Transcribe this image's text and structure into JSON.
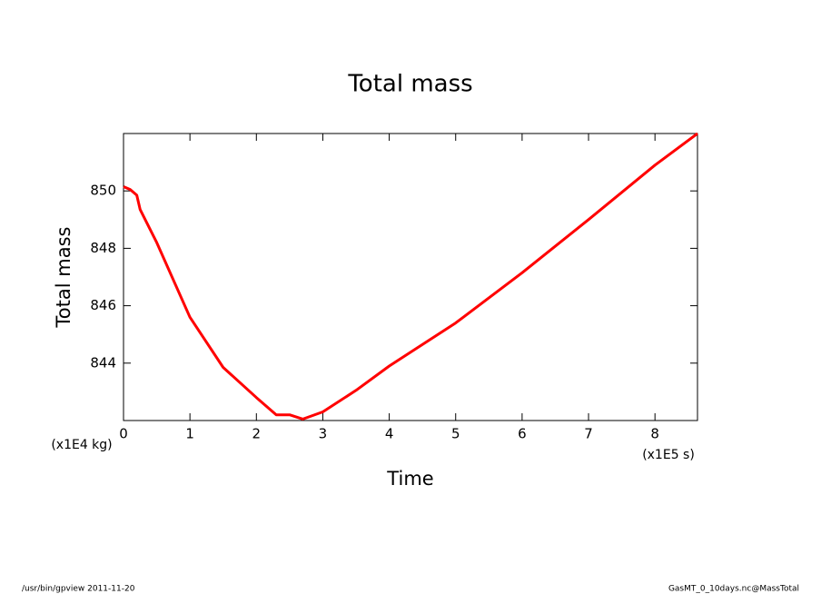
{
  "chart_data": {
    "type": "line",
    "title": "Total mass",
    "x_label": "Time",
    "y_label": "Total mass",
    "x_units": "(x1E5 s)",
    "y_units": "(x1E4 kg)",
    "footer_left": "/usr/bin/gpview  2011-11-20",
    "footer_right": "GasMT_0_10days.nc@MassTotal",
    "xlim": [
      0,
      8.64
    ],
    "ylim": [
      842,
      852
    ],
    "xticks": [
      0,
      1,
      2,
      3,
      4,
      5,
      6,
      7,
      8
    ],
    "yticks": [
      844,
      846,
      848,
      850
    ],
    "x": [
      0,
      0.1,
      0.2,
      0.25,
      0.5,
      1.0,
      1.5,
      2.0,
      2.3,
      2.5,
      2.7,
      3.0,
      3.5,
      4.0,
      5.0,
      6.0,
      7.0,
      8.0,
      8.64
    ],
    "series": [
      {
        "name": "Total mass",
        "color": "#ff0000",
        "values": [
          850.15,
          850.05,
          849.85,
          849.35,
          848.2,
          845.6,
          843.85,
          842.8,
          842.2,
          842.2,
          842.05,
          842.3,
          843.05,
          843.9,
          845.4,
          847.15,
          849.0,
          850.9,
          852.0
        ]
      }
    ]
  }
}
